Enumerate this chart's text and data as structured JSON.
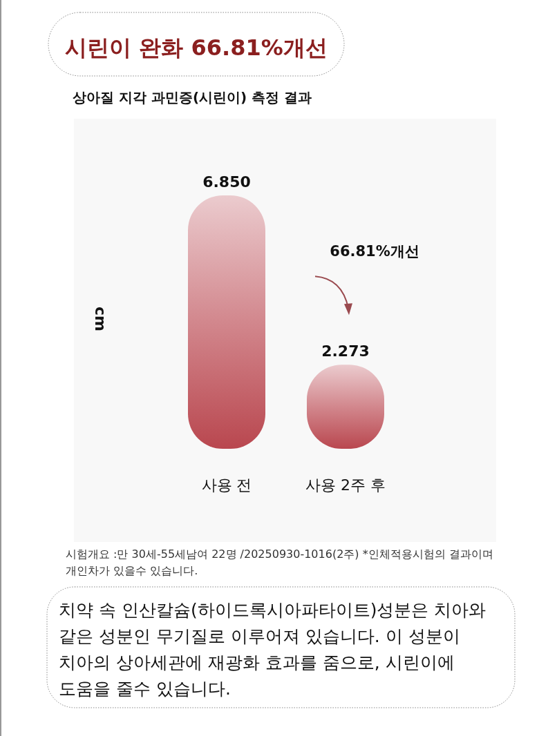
{
  "chart_data": {
    "type": "bar",
    "title": "시린이 완화 66.81%개선",
    "subtitle": "상아질 지각 과민증(시린이) 측정 결과",
    "ylabel": "cm",
    "categories": [
      "사용 전",
      "사용 2주 후"
    ],
    "values": [
      6.85,
      2.273
    ],
    "value_labels": [
      "6.850",
      "2.273"
    ],
    "color": "#b9474f",
    "annotations": [
      "66.81%개선",
      "시험개요 :만 30세-55세남여 22명 /20250930-1016(2주) *인체적용시험의 결과이며 개인차가 있을수 있습니다.",
      "치약 속 인산칼슘(하이드록시아파타이트)성분은 치아와 같은 성분인 무기질로 이루어져 있습니다. 이 성분이 치아의 상아세관에 재광화 효과를 줌으로, 시린이에 도움을 줄수 있습니다."
    ]
  }
}
